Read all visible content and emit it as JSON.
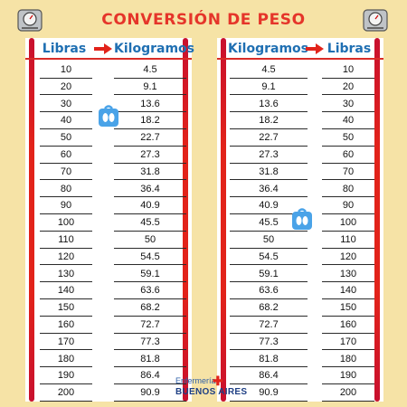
{
  "title": "CONVERSIÓN DE PESO",
  "left_table": {
    "header_col1": "Libras",
    "header_col2": "Kilogramos",
    "rows": [
      [
        "10",
        "4.5"
      ],
      [
        "20",
        "9.1"
      ],
      [
        "30",
        "13.6"
      ],
      [
        "40",
        "18.2"
      ],
      [
        "50",
        "22.7"
      ],
      [
        "60",
        "27.3"
      ],
      [
        "70",
        "31.8"
      ],
      [
        "80",
        "36.4"
      ],
      [
        "90",
        "40.9"
      ],
      [
        "100",
        "45.5"
      ],
      [
        "110",
        "50"
      ],
      [
        "120",
        "54.5"
      ],
      [
        "130",
        "59.1"
      ],
      [
        "140",
        "63.6"
      ],
      [
        "150",
        "68.2"
      ],
      [
        "160",
        "72.7"
      ],
      [
        "170",
        "77.3"
      ],
      [
        "180",
        "81.8"
      ],
      [
        "190",
        "86.4"
      ],
      [
        "200",
        "90.9"
      ]
    ]
  },
  "right_table": {
    "header_col1": "Kilogramos",
    "header_col2": "Libras",
    "rows": [
      [
        "4.5",
        "10"
      ],
      [
        "9.1",
        "20"
      ],
      [
        "13.6",
        "30"
      ],
      [
        "18.2",
        "40"
      ],
      [
        "22.7",
        "50"
      ],
      [
        "27.3",
        "60"
      ],
      [
        "31.8",
        "70"
      ],
      [
        "36.4",
        "80"
      ],
      [
        "40.9",
        "90"
      ],
      [
        "45.5",
        "100"
      ],
      [
        "50",
        "110"
      ],
      [
        "54.5",
        "120"
      ],
      [
        "59.1",
        "130"
      ],
      [
        "63.6",
        "140"
      ],
      [
        "68.2",
        "150"
      ],
      [
        "72.7",
        "160"
      ],
      [
        "77.3",
        "170"
      ],
      [
        "81.8",
        "180"
      ],
      [
        "86.4",
        "190"
      ],
      [
        "90.9",
        "200"
      ]
    ]
  },
  "logo": {
    "line1": "Enfermería",
    "line2": "BUENOS AIRES"
  },
  "icons": {
    "top_left": "bathroom-scale-icon",
    "top_right": "bathroom-scale-icon",
    "left_table": "scale-feet-icon",
    "right_table": "scale-feet-icon",
    "header_arrow": "right-arrow-icon",
    "logo_cross": "medical-cross-icon"
  },
  "colors": {
    "background": "#f6e3a6",
    "title": "#e5352a",
    "header_text": "#1f6fb2",
    "bars": "#e2231a",
    "scale_icon": "#4aa3e8"
  }
}
